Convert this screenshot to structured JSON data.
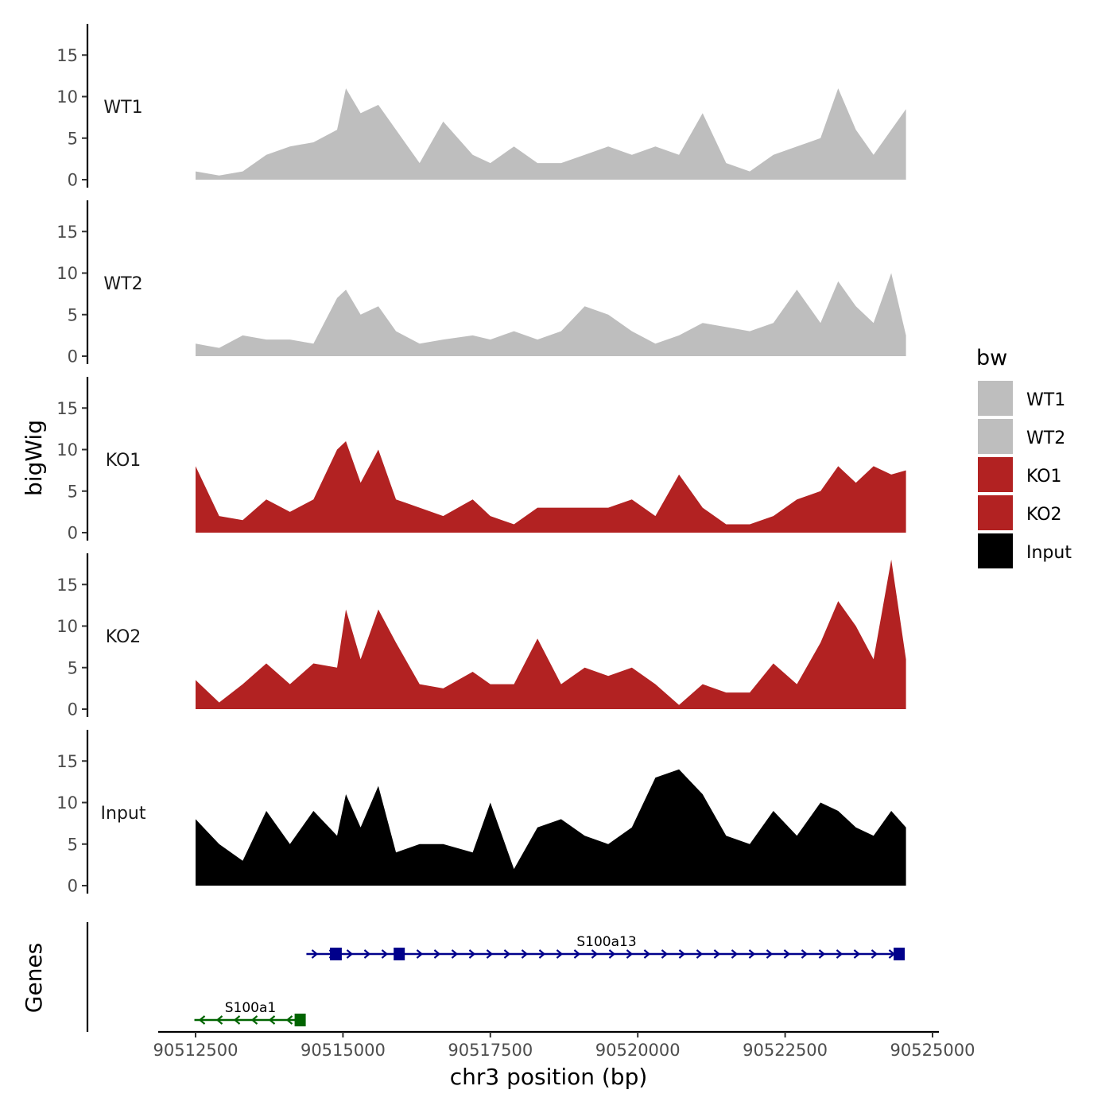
{
  "chart_data": {
    "type": "area",
    "title": "",
    "xlabel": "chr3 position (bp)",
    "ylabel_tracks": "bigWig",
    "ylabel_genes": "Genes",
    "xlim": [
      90512000,
      90525000
    ],
    "ylim": [
      0,
      18.5
    ],
    "x_ticks": [
      90512500,
      90515000,
      90517500,
      90520000,
      90522500,
      90525000
    ],
    "x_tick_labels": [
      "90512500",
      "90515000",
      "90517500",
      "90520000",
      "90522500",
      "90525000"
    ],
    "y_ticks": [
      0,
      5,
      10,
      15
    ],
    "y_tick_labels": [
      "0",
      "5",
      "10",
      "15"
    ],
    "legend": {
      "title": "bw",
      "position": "right",
      "entries": [
        {
          "label": "WT1",
          "color": "#bebebe"
        },
        {
          "label": "WT2",
          "color": "#bebebe"
        },
        {
          "label": "KO1",
          "color": "#b22222"
        },
        {
          "label": "KO2",
          "color": "#b22222"
        },
        {
          "label": "Input",
          "color": "#000000"
        }
      ]
    },
    "series": [
      {
        "name": "WT1",
        "color": "#bebebe",
        "x": [
          90512500,
          90512900,
          90513300,
          90513700,
          90514100,
          90514500,
          90514900,
          90515050,
          90515300,
          90515600,
          90515900,
          90516300,
          90516700,
          90517200,
          90517500,
          90517900,
          90518300,
          90518700,
          90519100,
          90519500,
          90519900,
          90520300,
          90520700,
          90521100,
          90521500,
          90521900,
          90522300,
          90522700,
          90523100,
          90523400,
          90523700,
          90524000,
          90524300,
          90524550
        ],
        "values": [
          1,
          0.5,
          1,
          3,
          4,
          4.5,
          6,
          11,
          8,
          9,
          6,
          2,
          7,
          3,
          2,
          4,
          2,
          2,
          3,
          4,
          3,
          4,
          3,
          8,
          2,
          1,
          3,
          4,
          5,
          11,
          6,
          3,
          6,
          8.5
        ]
      },
      {
        "name": "WT2",
        "color": "#bebebe",
        "x": [
          90512500,
          90512900,
          90513300,
          90513700,
          90514100,
          90514500,
          90514900,
          90515050,
          90515300,
          90515600,
          90515900,
          90516300,
          90516700,
          90517200,
          90517500,
          90517900,
          90518300,
          90518700,
          90519100,
          90519500,
          90519900,
          90520300,
          90520700,
          90521100,
          90521500,
          90521900,
          90522300,
          90522700,
          90523100,
          90523400,
          90523700,
          90524000,
          90524300,
          90524550
        ],
        "values": [
          1.5,
          1,
          2.5,
          2,
          2,
          1.5,
          7,
          8,
          5,
          6,
          3,
          1.5,
          2,
          2.5,
          2,
          3,
          2,
          3,
          6,
          5,
          3,
          1.5,
          2.5,
          4,
          3.5,
          3,
          4,
          8,
          4,
          9,
          6,
          4,
          10,
          2.5
        ]
      },
      {
        "name": "KO1",
        "color": "#b22222",
        "x": [
          90512500,
          90512900,
          90513300,
          90513700,
          90514100,
          90514500,
          90514900,
          90515050,
          90515300,
          90515600,
          90515900,
          90516300,
          90516700,
          90517200,
          90517500,
          90517900,
          90518300,
          90518700,
          90519100,
          90519500,
          90519900,
          90520300,
          90520700,
          90521100,
          90521500,
          90521900,
          90522300,
          90522700,
          90523100,
          90523400,
          90523700,
          90524000,
          90524300,
          90524550
        ],
        "values": [
          8,
          2,
          1.5,
          4,
          2.5,
          4,
          10,
          11,
          6,
          10,
          4,
          3,
          2,
          4,
          2,
          1,
          3,
          3,
          3,
          3,
          4,
          2,
          7,
          3,
          1,
          1,
          2,
          4,
          5,
          8,
          6,
          8,
          7,
          7.5
        ]
      },
      {
        "name": "KO2",
        "color": "#b22222",
        "x": [
          90512500,
          90512900,
          90513300,
          90513700,
          90514100,
          90514500,
          90514900,
          90515050,
          90515300,
          90515600,
          90515900,
          90516300,
          90516700,
          90517200,
          90517500,
          90517900,
          90518300,
          90518700,
          90519100,
          90519500,
          90519900,
          90520300,
          90520700,
          90521100,
          90521500,
          90521900,
          90522300,
          90522700,
          90523100,
          90523400,
          90523700,
          90524000,
          90524300,
          90524550
        ],
        "values": [
          3.5,
          0.8,
          3,
          5.5,
          3,
          5.5,
          5,
          12,
          6,
          12,
          8,
          3,
          2.5,
          4.5,
          3,
          3,
          8.5,
          3,
          5,
          4,
          5,
          3,
          0.5,
          3,
          2,
          2,
          5.5,
          3,
          8,
          13,
          10,
          6,
          18,
          6
        ]
      },
      {
        "name": "Input",
        "color": "#000000",
        "x": [
          90512500,
          90512900,
          90513300,
          90513700,
          90514100,
          90514500,
          90514900,
          90515050,
          90515300,
          90515600,
          90515900,
          90516300,
          90516700,
          90517200,
          90517500,
          90517900,
          90518300,
          90518700,
          90519100,
          90519500,
          90519900,
          90520300,
          90520700,
          90521100,
          90521500,
          90521900,
          90522300,
          90522700,
          90523100,
          90523400,
          90523700,
          90524000,
          90524300,
          90524550
        ],
        "values": [
          8,
          5,
          3,
          9,
          5,
          9,
          6,
          11,
          7,
          12,
          4,
          5,
          5,
          4,
          10,
          2,
          7,
          8,
          6,
          5,
          7,
          13,
          14,
          11,
          6,
          5,
          9,
          6,
          10,
          9,
          7,
          6,
          9,
          7
        ]
      }
    ],
    "genes": [
      {
        "name": "S100a13",
        "strand": "+",
        "color": "#00008b",
        "start": 90514380,
        "end": 90524450,
        "exons": [
          [
            90514780,
            90514980
          ],
          [
            90515860,
            90516010
          ],
          [
            90524340,
            90524500
          ]
        ]
      },
      {
        "name": "S100a1",
        "strand": "-",
        "color": "#006400",
        "start": 90512480,
        "end": 90514330,
        "exons": [
          [
            90514180,
            90514290
          ]
        ]
      }
    ]
  }
}
